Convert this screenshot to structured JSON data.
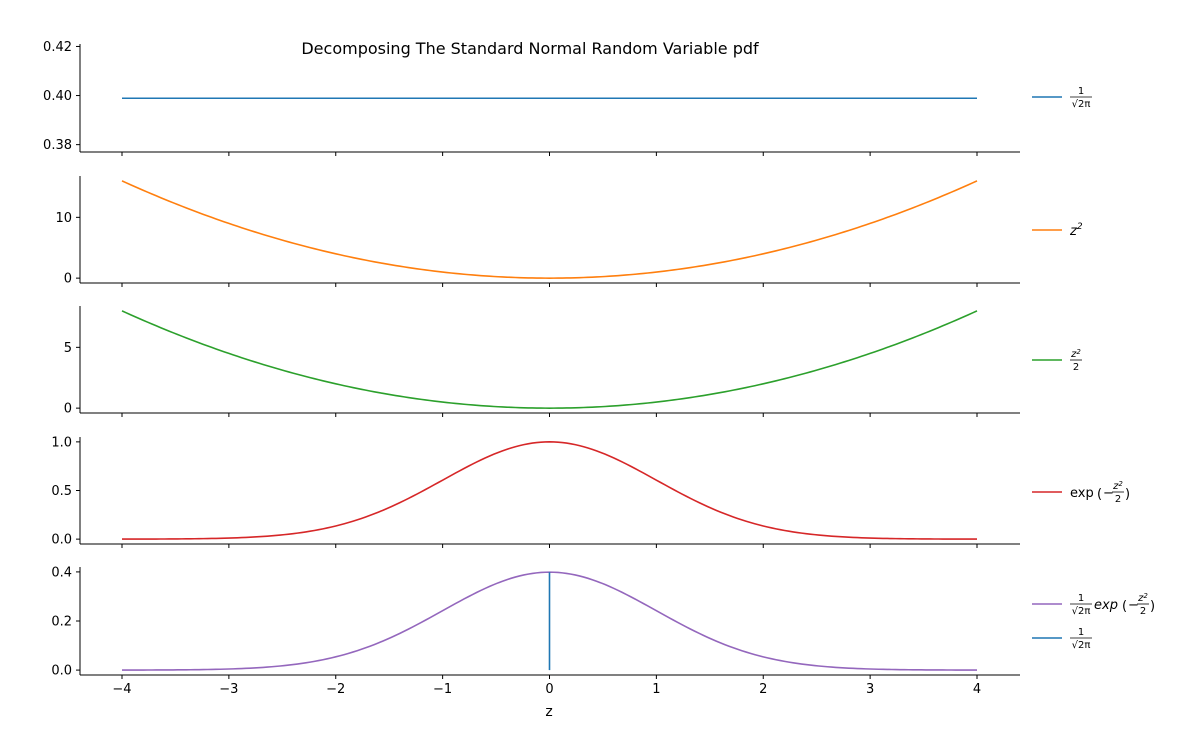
{
  "chart_data": {
    "title": "Decomposing The Standard Normal Random Variable pdf",
    "xlabel": "z",
    "x_range": [
      -4,
      4
    ],
    "x_ticks": [
      -4,
      -3,
      -2,
      -1,
      0,
      1,
      2,
      3,
      4
    ],
    "x_tick_labels": [
      "−4",
      "−3",
      "−2",
      "−1",
      "0",
      "1",
      "2",
      "3",
      "4"
    ],
    "panels": [
      {
        "type": "line",
        "ylim": [
          0.377,
          0.421
        ],
        "y_ticks": [
          0.38,
          0.4,
          0.42
        ],
        "y_tick_labels": [
          "0.38",
          "0.40",
          "0.42"
        ],
        "series": [
          {
            "name": "1/sqrt(2pi)",
            "color": "#1f77b4",
            "function": "const",
            "constant": 0.3989,
            "x": [
              -4,
              4
            ],
            "y": [
              0.3989,
              0.3989
            ],
            "legend": {
              "num": "1",
              "den_root": "√",
              "den": "2π"
            }
          }
        ]
      },
      {
        "type": "line",
        "ylim": [
          -0.8,
          16.8
        ],
        "y_ticks": [
          0,
          10
        ],
        "y_tick_labels": [
          "0",
          "10"
        ],
        "series": [
          {
            "name": "z^2",
            "color": "#ff7f0e",
            "function": "z2",
            "x": [
              -4,
              -3,
              -2,
              -1,
              0,
              1,
              2,
              3,
              4
            ],
            "y": [
              16,
              9,
              4,
              1,
              0,
              1,
              4,
              9,
              16
            ],
            "legend": {
              "base": "z",
              "sup": "2"
            }
          }
        ]
      },
      {
        "type": "line",
        "ylim": [
          -0.4,
          8.4
        ],
        "y_ticks": [
          0,
          5
        ],
        "y_tick_labels": [
          "0",
          "5"
        ],
        "series": [
          {
            "name": "z^2/2",
            "color": "#2ca02c",
            "function": "z2half",
            "x": [
              -4,
              -3,
              -2,
              -1,
              0,
              1,
              2,
              3,
              4
            ],
            "y": [
              8,
              4.5,
              2,
              0.5,
              0,
              0.5,
              2,
              4.5,
              8
            ],
            "legend": {
              "base": "z",
              "sup": "2",
              "den": "2"
            }
          }
        ]
      },
      {
        "type": "line",
        "ylim": [
          -0.05,
          1.05
        ],
        "y_ticks": [
          0.0,
          0.5,
          1.0
        ],
        "y_tick_labels": [
          "0.0",
          "0.5",
          "1.0"
        ],
        "series": [
          {
            "name": "exp(-z^2/2)",
            "color": "#d62728",
            "function": "exp",
            "x": [
              -4,
              -3,
              -2,
              -1,
              0,
              1,
              2,
              3,
              4
            ],
            "y": [
              0.0003,
              0.0111,
              0.1353,
              0.6065,
              1.0,
              0.6065,
              0.1353,
              0.0111,
              0.0003
            ],
            "legend": {
              "prefix": "exp",
              "minus": "−",
              "base": "z",
              "sup": "2",
              "den": "2",
              "lparen": "(",
              "rparen": ")"
            }
          }
        ]
      },
      {
        "type": "line",
        "ylim": [
          -0.02,
          0.42
        ],
        "y_ticks": [
          0.0,
          0.2,
          0.4
        ],
        "y_tick_labels": [
          "0.0",
          "0.2",
          "0.4"
        ],
        "series": [
          {
            "name": "1/sqrt(2pi) exp(-z^2/2)",
            "color": "#9467bd",
            "function": "pdf",
            "x": [
              -4,
              -3,
              -2,
              -1,
              0,
              1,
              2,
              3,
              4
            ],
            "y": [
              0.0001,
              0.0044,
              0.054,
              0.242,
              0.3989,
              0.242,
              0.054,
              0.0044,
              0.0001
            ],
            "legend": {
              "num": "1",
              "den_root": "√",
              "den": "2π",
              "prefix": "exp",
              "minus": "−",
              "base": "z",
              "sup": "2",
              "den2": "2",
              "lparen": "(",
              "rparen": ")"
            }
          },
          {
            "name": "1/sqrt(2pi) vertical",
            "color": "#1f77b4",
            "function": "vline",
            "vline_x": 0,
            "vline_y": [
              0,
              0.3989
            ],
            "x": [
              0,
              0
            ],
            "y": [
              0,
              0.3989
            ],
            "legend": {
              "num": "1",
              "den_root": "√",
              "den": "2π"
            }
          }
        ]
      }
    ]
  }
}
